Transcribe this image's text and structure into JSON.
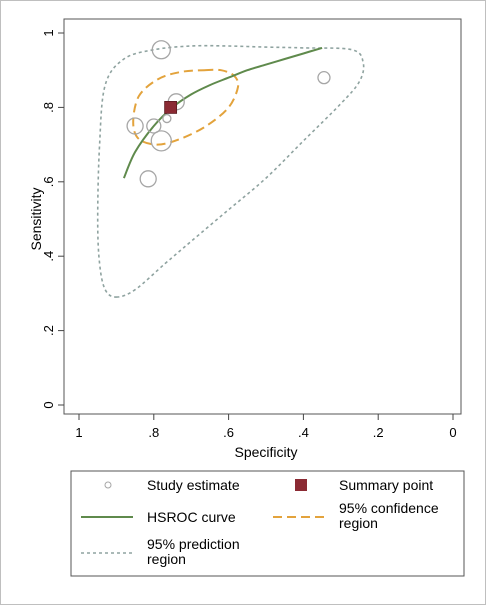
{
  "chart_data": {
    "type": "scatter",
    "title": "",
    "xlabel": "Specificity",
    "ylabel": "Sensitivity",
    "x_reversed": true,
    "xlim": [
      1,
      0
    ],
    "ylim": [
      0,
      1
    ],
    "x_ticks": [
      1,
      0.8,
      0.6,
      0.4,
      0.2,
      0
    ],
    "x_tick_labels": [
      "1",
      ".8",
      ".6",
      ".4",
      ".2",
      "0"
    ],
    "y_ticks": [
      0,
      0.2,
      0.4,
      0.6,
      0.8,
      1
    ],
    "y_tick_labels": [
      "0",
      ".2",
      ".4",
      ".6",
      ".8",
      "1"
    ],
    "grid": false,
    "legend_position": "bottom",
    "study_estimates": [
      {
        "specificity": 0.78,
        "sensitivity": 0.955,
        "size": 9
      },
      {
        "specificity": 0.345,
        "sensitivity": 0.88,
        "size": 6
      },
      {
        "specificity": 0.74,
        "sensitivity": 0.815,
        "size": 8
      },
      {
        "specificity": 0.765,
        "sensitivity": 0.77,
        "size": 4
      },
      {
        "specificity": 0.85,
        "sensitivity": 0.75,
        "size": 8
      },
      {
        "specificity": 0.8,
        "sensitivity": 0.75,
        "size": 7
      },
      {
        "specificity": 0.78,
        "sensitivity": 0.71,
        "size": 10
      },
      {
        "specificity": 0.815,
        "sensitivity": 0.608,
        "size": 8
      }
    ],
    "summary_point": {
      "specificity": 0.755,
      "sensitivity": 0.8
    },
    "hsroc_curve": [
      [
        0.88,
        0.61
      ],
      [
        0.85,
        0.68
      ],
      [
        0.8,
        0.75
      ],
      [
        0.75,
        0.8
      ],
      [
        0.7,
        0.835
      ],
      [
        0.65,
        0.86
      ],
      [
        0.6,
        0.88
      ],
      [
        0.55,
        0.9
      ],
      [
        0.5,
        0.915
      ],
      [
        0.45,
        0.93
      ],
      [
        0.4,
        0.945
      ],
      [
        0.35,
        0.96
      ]
    ],
    "confidence_region": [
      [
        0.665,
        0.9
      ],
      [
        0.62,
        0.9
      ],
      [
        0.585,
        0.885
      ],
      [
        0.575,
        0.855
      ],
      [
        0.6,
        0.8
      ],
      [
        0.66,
        0.75
      ],
      [
        0.73,
        0.715
      ],
      [
        0.79,
        0.7
      ],
      [
        0.84,
        0.715
      ],
      [
        0.855,
        0.76
      ],
      [
        0.84,
        0.83
      ],
      [
        0.79,
        0.875
      ],
      [
        0.73,
        0.895
      ]
    ],
    "prediction_region": [
      [
        0.9,
        0.29
      ],
      [
        0.85,
        0.31
      ],
      [
        0.77,
        0.38
      ],
      [
        0.7,
        0.44
      ],
      [
        0.6,
        0.525
      ],
      [
        0.5,
        0.61
      ],
      [
        0.4,
        0.71
      ],
      [
        0.3,
        0.81
      ],
      [
        0.25,
        0.87
      ],
      [
        0.24,
        0.92
      ],
      [
        0.27,
        0.955
      ],
      [
        0.4,
        0.96
      ],
      [
        0.5,
        0.962
      ],
      [
        0.6,
        0.965
      ],
      [
        0.7,
        0.965
      ],
      [
        0.8,
        0.955
      ],
      [
        0.88,
        0.93
      ],
      [
        0.93,
        0.86
      ],
      [
        0.945,
        0.7
      ],
      [
        0.95,
        0.5
      ],
      [
        0.945,
        0.38
      ],
      [
        0.93,
        0.31
      ]
    ],
    "legend": [
      {
        "key": "study",
        "label": "Study estimate"
      },
      {
        "key": "summary",
        "label": "Summary point"
      },
      {
        "key": "hsroc",
        "label": "HSROC curve"
      },
      {
        "key": "confidence",
        "label_lines": [
          "95% confidence",
          "region"
        ]
      },
      {
        "key": "prediction",
        "label_lines": [
          "95% prediction",
          "region"
        ]
      }
    ],
    "colors": {
      "study": "#a6a6a6",
      "summary": "#8b2a33",
      "hsroc": "#5f8a4c",
      "confidence": "#e3a33c",
      "prediction": "#8fa3a0",
      "axis": "#444444"
    }
  }
}
